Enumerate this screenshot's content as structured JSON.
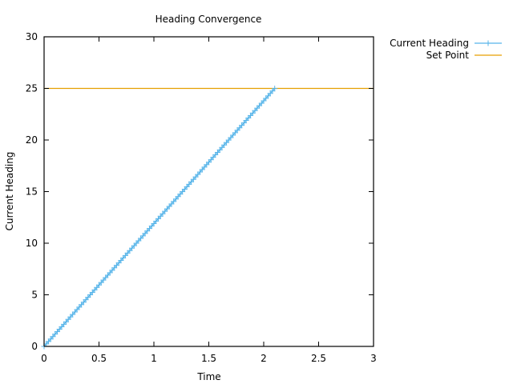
{
  "chart_data": {
    "type": "line",
    "title": "Heading Convergence",
    "xlabel": "Time",
    "ylabel": "Current Heading",
    "xlim": [
      0,
      3
    ],
    "ylim": [
      0,
      30
    ],
    "x_ticks": [
      "0",
      "0.5",
      "1",
      "1.5",
      "2",
      "2.5",
      "3"
    ],
    "y_ticks": [
      "0",
      "5",
      "10",
      "15",
      "20",
      "25",
      "30"
    ],
    "grid": false,
    "legend_position": "outside-top-right",
    "series": [
      {
        "name": "Current Heading",
        "color": "#56b4e9",
        "marker": "plus",
        "x_start": 0,
        "x_end": 2.1,
        "x_step": 0.02,
        "slope_per_time": 11.9,
        "final_value": 25
      },
      {
        "name": "Set Point",
        "color": "#e69f00",
        "marker": "none",
        "y": 25
      }
    ]
  }
}
